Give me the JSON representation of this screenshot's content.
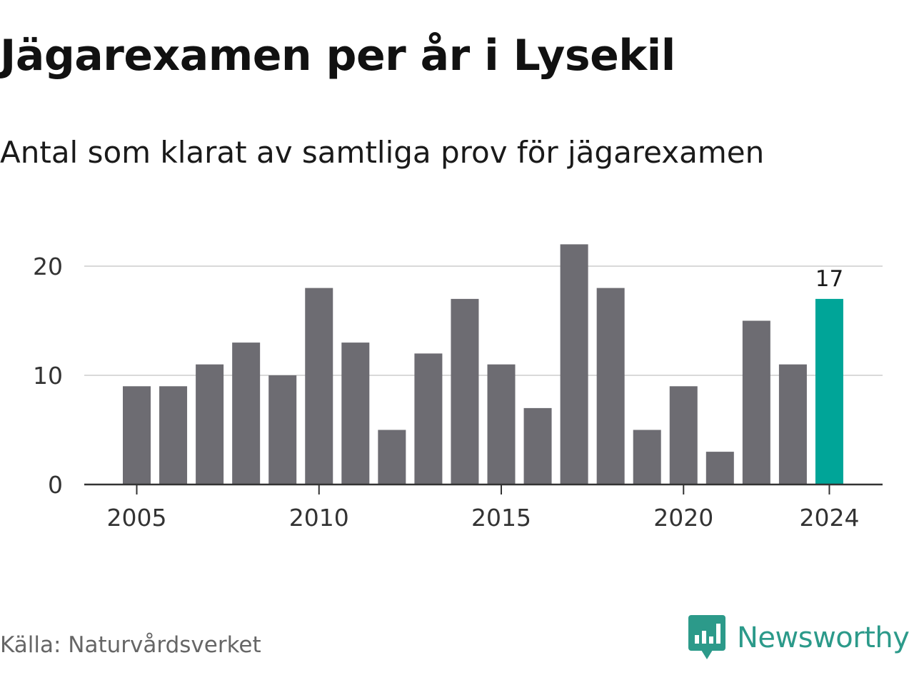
{
  "title": "Jägarexamen per år i Lysekil",
  "subtitle": "Antal som klarat av samtliga prov för jägarexamen",
  "source": "Källa: Naturvårdsverket",
  "brand": {
    "name": "Newsworthy",
    "icon": "newsworthy-logo-icon",
    "color": "#2c9a8a"
  },
  "colors": {
    "bar": "#6d6c72",
    "highlight": "#00a598",
    "grid": "#d9d9d9",
    "axis": "#333333",
    "text": "#333333"
  },
  "chart_data": {
    "type": "bar",
    "title": "Jägarexamen per år i Lysekil",
    "subtitle": "Antal som klarat av samtliga prov för jägarexamen",
    "categories": [
      2005,
      2006,
      2007,
      2008,
      2009,
      2010,
      2011,
      2012,
      2013,
      2014,
      2015,
      2016,
      2017,
      2018,
      2019,
      2020,
      2021,
      2022,
      2023,
      2024
    ],
    "values": [
      9,
      9,
      11,
      13,
      10,
      18,
      13,
      5,
      12,
      17,
      11,
      7,
      22,
      18,
      5,
      9,
      3,
      15,
      11,
      17
    ],
    "highlight": {
      "category": 2024,
      "label": "17"
    },
    "x_ticks": [
      "2005",
      "2010",
      "2015",
      "2020",
      "2024"
    ],
    "y_ticks": [
      "0",
      "10",
      "20"
    ],
    "ylim": [
      0,
      22
    ],
    "xlabel": "",
    "ylabel": "",
    "grid": true,
    "legend": "none"
  }
}
